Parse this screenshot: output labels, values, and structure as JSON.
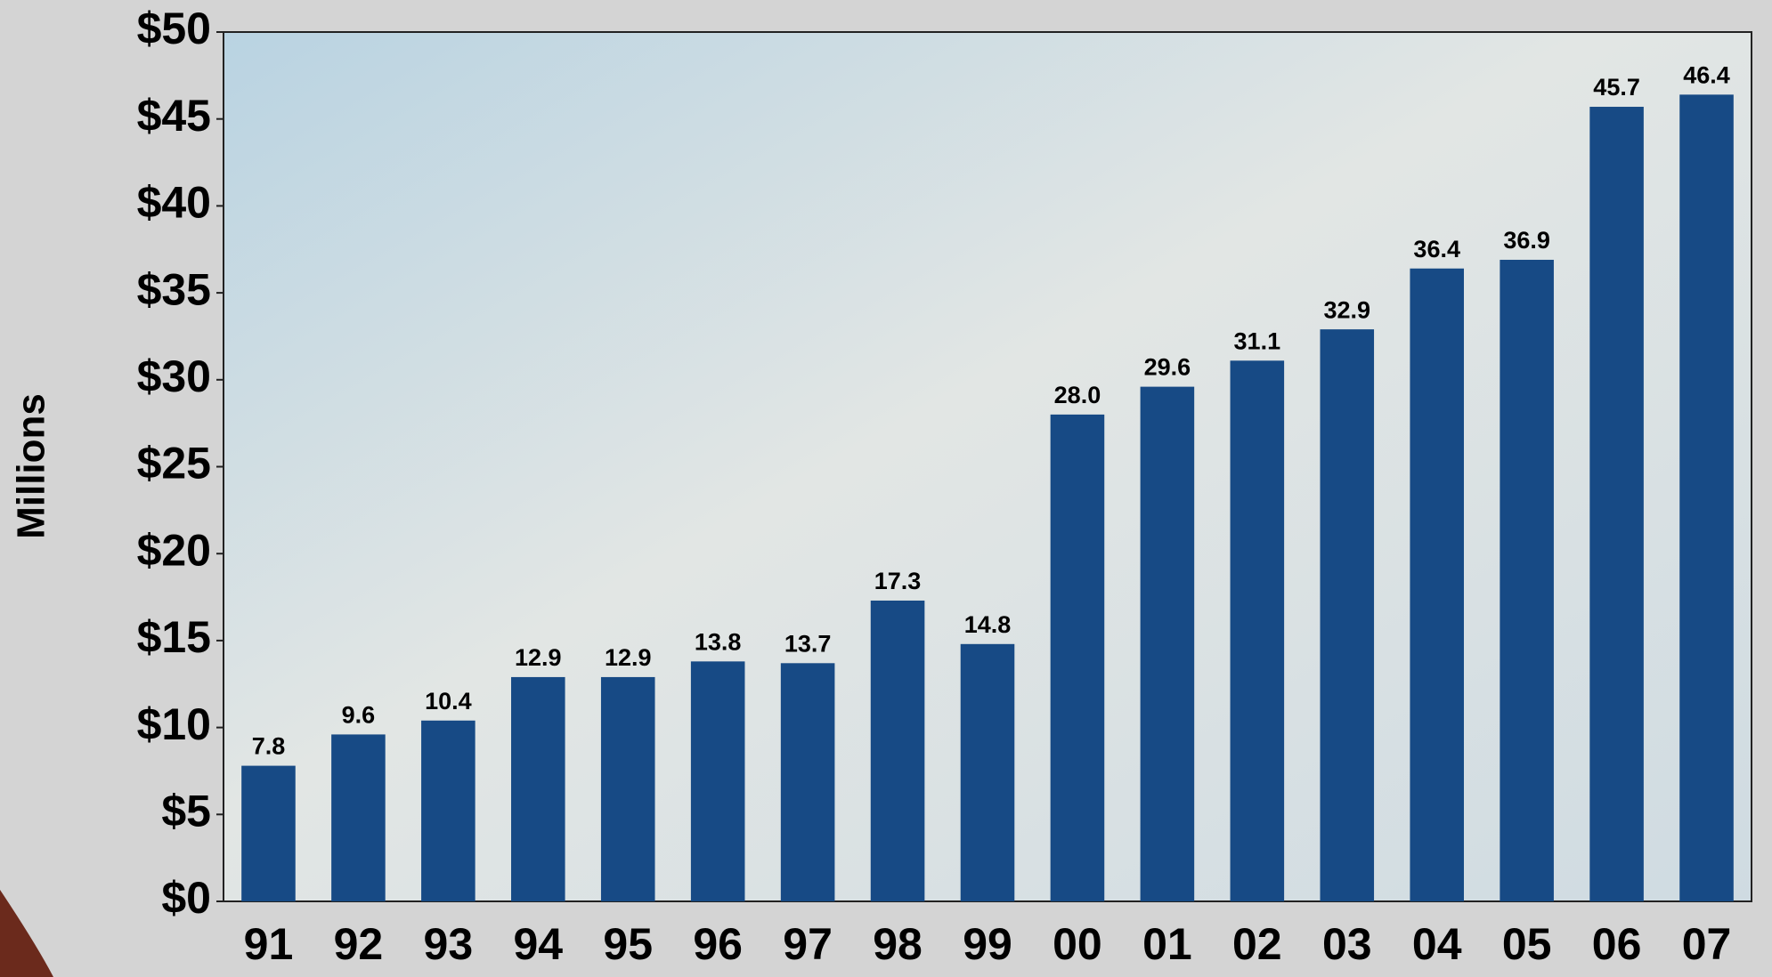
{
  "chart_data": {
    "type": "bar",
    "y_label": "Millions",
    "categories": [
      "91",
      "92",
      "93",
      "94",
      "95",
      "96",
      "97",
      "98",
      "99",
      "00",
      "01",
      "02",
      "03",
      "04",
      "05",
      "06",
      "07"
    ],
    "values": [
      7.8,
      9.6,
      10.4,
      12.9,
      12.9,
      13.8,
      13.7,
      17.3,
      14.8,
      28.0,
      29.6,
      31.1,
      32.9,
      36.4,
      36.9,
      45.7,
      46.4
    ],
    "value_labels": [
      "7.8",
      "9.6",
      "10.4",
      "12.9",
      "12.9",
      "13.8",
      "13.7",
      "17.3",
      "14.8",
      "28.0",
      "29.6",
      "31.1",
      "32.9",
      "36.4",
      "36.9",
      "45.7",
      "46.4"
    ],
    "color": "#174a85",
    "ylim": [
      0,
      50
    ],
    "yticks": [
      {
        "value": 0,
        "label": "$0"
      },
      {
        "value": 5,
        "label": "$5"
      },
      {
        "value": 10,
        "label": "$10"
      },
      {
        "value": 15,
        "label": "$15"
      },
      {
        "value": 20,
        "label": "$20"
      },
      {
        "value": 25,
        "label": "$25"
      },
      {
        "value": 30,
        "label": "$30"
      },
      {
        "value": 35,
        "label": "$35"
      },
      {
        "value": 40,
        "label": "$40"
      },
      {
        "value": 45,
        "label": "$45"
      },
      {
        "value": 50,
        "label": "$50"
      }
    ]
  }
}
